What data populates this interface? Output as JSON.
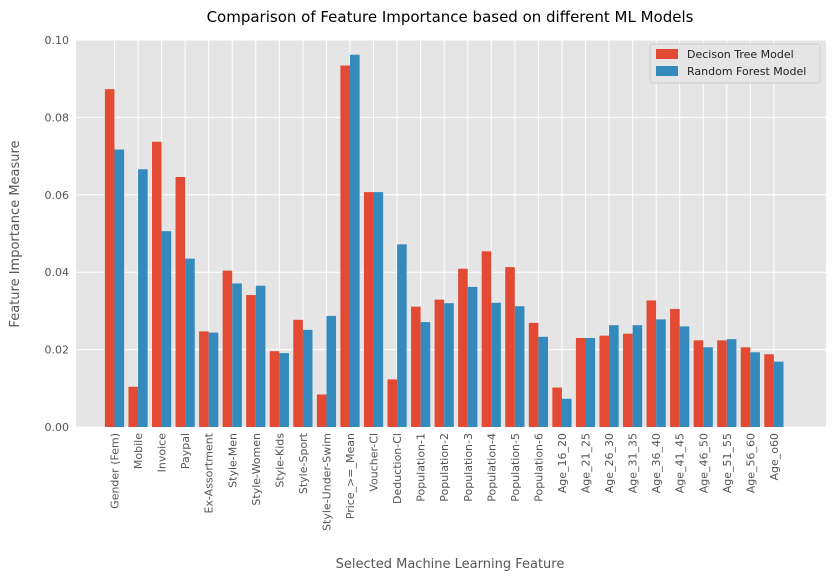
{
  "chart_data": {
    "type": "bar",
    "title": "Comparison of Feature Importance based on different ML Models",
    "xlabel": "Selected Machine Learning Feature",
    "ylabel": "Feature Importance Measure",
    "ylim": [
      0,
      0.1
    ],
    "yticks": [
      "0.00",
      "0.02",
      "0.04",
      "0.06",
      "0.08",
      "0.10"
    ],
    "grid": true,
    "legend_position": "top-right",
    "categories": [
      "Gender (Fem)",
      "Mobile",
      "Invoice",
      "Paypal",
      "Ex-Assortment",
      "Style-Men",
      "Style-Women",
      "Style-Kids",
      "Style-Sport",
      "Style-Under-Swim",
      "Price_>=_Mean",
      "Voucher-Cl",
      "Deduction-Cl",
      "Population-1",
      "Population-2",
      "Population-3",
      "Population-4",
      "Population-5",
      "Population-6",
      "Age_16_20",
      "Age_21_25",
      "Age_26_30",
      "Age_31_35",
      "Age_36_40",
      "Age_41_45",
      "Age_46_50",
      "Age_51_55",
      "Age_56_60",
      "Age_o60"
    ],
    "series": [
      {
        "name": "Decison Tree Model",
        "color": "#e24a33",
        "values": [
          0.0873,
          0.0104,
          0.0737,
          0.0646,
          0.0247,
          0.0404,
          0.0341,
          0.0196,
          0.0277,
          0.0084,
          0.0934,
          0.0607,
          0.0123,
          0.0311,
          0.0329,
          0.0409,
          0.0454,
          0.0413,
          0.0269,
          0.0102,
          0.023,
          0.0236,
          0.0241,
          0.0327,
          0.0305,
          0.0224,
          0.0224,
          0.0206,
          0.0188
        ]
      },
      {
        "name": "Random Forest Model",
        "color": "#348abd",
        "values": [
          0.0717,
          0.0666,
          0.0506,
          0.0435,
          0.0244,
          0.0371,
          0.0365,
          0.0191,
          0.0251,
          0.0287,
          0.0962,
          0.0607,
          0.0472,
          0.0271,
          0.032,
          0.0362,
          0.0321,
          0.0312,
          0.0233,
          0.0073,
          0.023,
          0.0263,
          0.0263,
          0.0278,
          0.026,
          0.0206,
          0.0227,
          0.0193,
          0.0169
        ]
      }
    ]
  },
  "colors": {
    "plot_background": "#e5e5e5",
    "grid": "#ffffff",
    "text": "#555555"
  }
}
